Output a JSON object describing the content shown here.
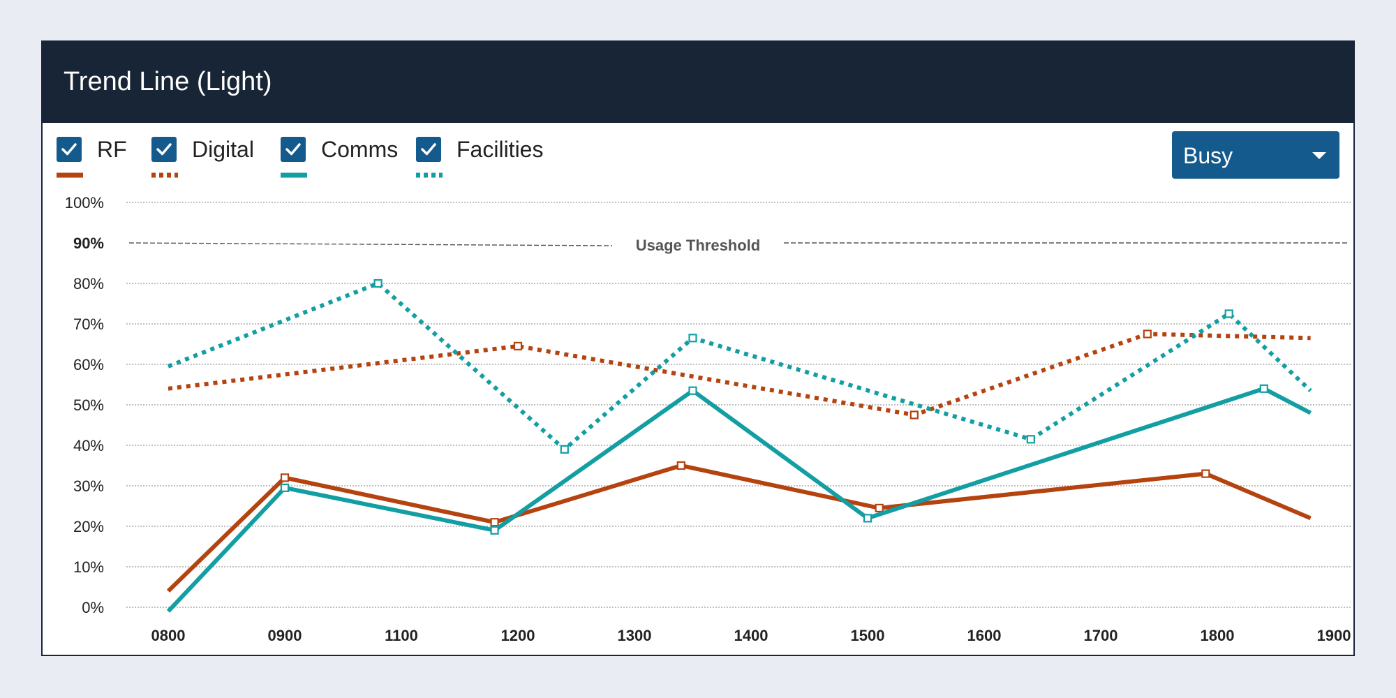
{
  "header": {
    "title": "Trend Line (Light)"
  },
  "legend": {
    "items": [
      {
        "label": "RF",
        "checked": true,
        "color": "#b5430f",
        "style": "solid"
      },
      {
        "label": "Digital",
        "checked": true,
        "color": "#b5430f",
        "style": "dotted"
      },
      {
        "label": "Comms",
        "checked": true,
        "color": "#129ea3",
        "style": "solid"
      },
      {
        "label": "Facilities",
        "checked": true,
        "color": "#129ea3",
        "style": "dotted"
      }
    ]
  },
  "dropdown": {
    "selected": "Busy",
    "icon": "chevron-down-icon"
  },
  "colors": {
    "header_bg": "#172536",
    "accent": "#155a8c",
    "orange": "#b5430f",
    "teal": "#129ea3"
  },
  "chart_data": {
    "type": "line",
    "title": "Trend Line (Light)",
    "x_ticks": [
      "0800",
      "0900",
      "1100",
      "1200",
      "1300",
      "1400",
      "1500",
      "1600",
      "1700",
      "1800",
      "1900"
    ],
    "y_ticks": [
      "0%",
      "10%",
      "20%",
      "30%",
      "40%",
      "50%",
      "60%",
      "70%",
      "80%",
      "90%",
      "100%"
    ],
    "y_range": [
      0,
      100
    ],
    "grid": true,
    "threshold": {
      "label": "Usage Threshold",
      "value": 90
    },
    "series": [
      {
        "name": "RF",
        "color": "#b5430f",
        "style": "solid",
        "points": [
          [
            0,
            4
          ],
          [
            1.0,
            32
          ],
          [
            2.8,
            21
          ],
          [
            4.4,
            35
          ],
          [
            6.1,
            24.5
          ],
          [
            8.9,
            33
          ],
          [
            9.8,
            22
          ]
        ],
        "markers": [
          1,
          2,
          3,
          4,
          5
        ]
      },
      {
        "name": "Digital",
        "color": "#b5430f",
        "style": "dotted",
        "points": [
          [
            0,
            54
          ],
          [
            3.0,
            64.5
          ],
          [
            6.4,
            47.5
          ],
          [
            8.4,
            67.5
          ],
          [
            9.8,
            66.5
          ]
        ],
        "markers": [
          1,
          2,
          3
        ]
      },
      {
        "name": "Comms",
        "color": "#129ea3",
        "style": "solid",
        "points": [
          [
            0,
            -1
          ],
          [
            1.0,
            29.5
          ],
          [
            2.8,
            19
          ],
          [
            4.5,
            53.5
          ],
          [
            6.0,
            22
          ],
          [
            9.4,
            54
          ],
          [
            9.8,
            48
          ]
        ],
        "markers": [
          1,
          2,
          3,
          4,
          5
        ]
      },
      {
        "name": "Facilities",
        "color": "#129ea3",
        "style": "dotted",
        "points": [
          [
            0,
            59.5
          ],
          [
            1.8,
            80
          ],
          [
            3.4,
            39
          ],
          [
            4.5,
            66.5
          ],
          [
            7.4,
            41.5
          ],
          [
            9.1,
            72.5
          ],
          [
            9.8,
            53.5
          ]
        ],
        "markers": [
          1,
          2,
          3,
          4,
          5
        ]
      }
    ]
  }
}
